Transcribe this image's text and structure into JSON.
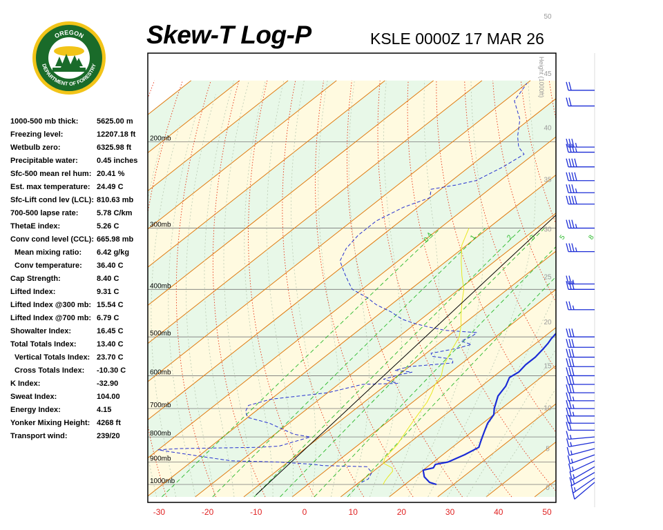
{
  "header": {
    "title": "Skew-T Log-P",
    "station": "KSLE 0000Z 17 MAR 26",
    "logo_text": [
      "OREGON",
      "DEPARTMENT OF FORESTRY"
    ]
  },
  "indices": [
    {
      "label": "1000-500 mb thick:",
      "value": "5625.00 m"
    },
    {
      "label": "Freezing level:",
      "value": "12207.18 ft"
    },
    {
      "label": "Wetbulb zero:",
      "value": "6325.98 ft"
    },
    {
      "label": "Precipitable water:",
      "value": "0.45 inches"
    },
    {
      "label": "Sfc-500 mean rel hum:",
      "value": "20.41 %"
    },
    {
      "label": "Est. max temperature:",
      "value": "24.49 C"
    },
    {
      "label": "Sfc-Lift cond lev (LCL):",
      "value": "810.63 mb"
    },
    {
      "label": "700-500 lapse rate:",
      "value": "5.78 C/km"
    },
    {
      "label": "ThetaE index:",
      "value": "5.26 C"
    },
    {
      "label": "Conv cond level (CCL):",
      "value": "665.98 mb"
    },
    {
      "label": "Mean mixing ratio:",
      "value": "6.42 g/kg",
      "indent": true
    },
    {
      "label": "Conv temperature:",
      "value": "36.40 C",
      "indent": true
    },
    {
      "label": "Cap Strength:",
      "value": "8.40 C"
    },
    {
      "label": "Lifted Index:",
      "value": "9.31 C"
    },
    {
      "label": "Lifted Index @300 mb:",
      "value": "15.54 C"
    },
    {
      "label": "Lifted Index @700 mb:",
      "value": "6.79 C"
    },
    {
      "label": "Showalter Index:",
      "value": "16.45 C"
    },
    {
      "label": "Total Totals Index:",
      "value": "13.40 C"
    },
    {
      "label": "Vertical Totals Index:",
      "value": "23.70 C",
      "indent": true
    },
    {
      "label": "Cross Totals Index:",
      "value": "-10.30 C",
      "indent": true
    },
    {
      "label": "K Index:",
      "value": "-32.90"
    },
    {
      "label": "Sweat Index:",
      "value": "104.00"
    },
    {
      "label": "Energy Index:",
      "value": "4.15"
    },
    {
      "label": "Yonker Mixing Height:",
      "value": "4268 ft"
    },
    {
      "label": "Transport wind:",
      "value": "239/20"
    }
  ],
  "chart_data": {
    "type": "line",
    "x_axis": {
      "label": "",
      "unit": "C",
      "ticks": [
        -30,
        -20,
        -10,
        0,
        10,
        20,
        30,
        40,
        50
      ],
      "range": [
        -33,
        51
      ]
    },
    "y_axis": {
      "scale": "log",
      "unit": "mb",
      "range": [
        1050,
        150
      ],
      "labels": [
        "200mb",
        "300mb",
        "400mb",
        "500mb",
        "600mb",
        "700mb",
        "800mb",
        "900mb",
        "1000mb"
      ],
      "levels": [
        200,
        300,
        400,
        500,
        600,
        700,
        800,
        900,
        1000
      ]
    },
    "height_axis": {
      "label": "Height (1000ft)",
      "ticks": [
        0,
        5,
        10,
        15,
        20,
        25,
        30,
        35,
        40,
        45,
        50
      ]
    },
    "mixing_ratio_labels": [
      "0.4",
      "1",
      "2",
      "3",
      "5",
      "8"
    ],
    "mixing_ratios": [
      0.4,
      1,
      2,
      3,
      5,
      8
    ],
    "series": [
      {
        "type": "temperature",
        "color": "#1a2bd6",
        "points": [
          [
            26.5,
            1000
          ],
          [
            24.5,
            990
          ],
          [
            22,
            965
          ],
          [
            20,
            935
          ],
          [
            21.5,
            925
          ],
          [
            21,
            910
          ],
          [
            23,
            900
          ],
          [
            24.5,
            870
          ],
          [
            25.5,
            840
          ],
          [
            24.5,
            820
          ],
          [
            23.5,
            800
          ],
          [
            22.5,
            780
          ],
          [
            21,
            750
          ],
          [
            20,
            720
          ],
          [
            18.5,
            700
          ],
          [
            16,
            660
          ],
          [
            15,
            630
          ],
          [
            13.5,
            605
          ],
          [
            14,
            590
          ],
          [
            13.5,
            570
          ],
          [
            13.5,
            550
          ],
          [
            13,
            530
          ],
          [
            12.5,
            515
          ],
          [
            12,
            505
          ],
          [
            11.5,
            490
          ],
          [
            10.5,
            465
          ],
          [
            9,
            440
          ],
          [
            7,
            415
          ],
          [
            5,
            395
          ],
          [
            3,
            375
          ],
          [
            0,
            350
          ],
          [
            -3,
            325
          ],
          [
            -6,
            305
          ],
          [
            -10,
            285
          ],
          [
            -14,
            265
          ],
          [
            -18,
            240
          ],
          [
            -22,
            222
          ],
          [
            -26,
            210
          ],
          [
            -30,
            200
          ],
          [
            -33,
            192
          ],
          [
            -37,
            178
          ],
          [
            -40,
            163
          ],
          [
            -41,
            150
          ]
        ]
      },
      {
        "type": "dewpoint",
        "color": "#2530d0",
        "points": [
          [
            10.5,
            990
          ],
          [
            11,
            975
          ],
          [
            10.5,
            960
          ],
          [
            10,
            945
          ],
          [
            9,
            935
          ],
          [
            7.5,
            920
          ],
          [
            -2,
            915
          ],
          [
            -4,
            910
          ],
          [
            -8,
            905
          ],
          [
            -12,
            900
          ],
          [
            -22,
            895
          ],
          [
            -28,
            880
          ],
          [
            -32,
            870
          ],
          [
            -36,
            860
          ],
          [
            -40,
            850
          ],
          [
            -36,
            845
          ],
          [
            -20,
            840
          ],
          [
            -16,
            835
          ],
          [
            -12,
            800
          ],
          [
            -16,
            790
          ],
          [
            -20,
            770
          ],
          [
            -24,
            750
          ],
          [
            -30,
            730
          ],
          [
            -32,
            710
          ],
          [
            -33,
            690
          ],
          [
            -30,
            670
          ],
          [
            -20,
            650
          ],
          [
            -18,
            640
          ],
          [
            -15,
            625
          ],
          [
            -8,
            622
          ],
          [
            -12,
            610
          ],
          [
            -10,
            598
          ],
          [
            -8,
            590
          ],
          [
            -12,
            585
          ],
          [
            -10,
            575
          ],
          [
            -2,
            565
          ],
          [
            -3,
            555
          ],
          [
            -8,
            548
          ],
          [
            -9,
            540
          ],
          [
            -5,
            528
          ],
          [
            -3,
            518
          ],
          [
            -6,
            510
          ],
          [
            -5,
            498
          ],
          [
            -5,
            490
          ],
          [
            -12,
            485
          ],
          [
            -16,
            478
          ],
          [
            -20,
            470
          ],
          [
            -24,
            460
          ],
          [
            -28,
            445
          ],
          [
            -33,
            430
          ],
          [
            -37,
            415
          ],
          [
            -42,
            400
          ],
          [
            -45,
            385
          ],
          [
            -48,
            370
          ],
          [
            -52,
            350
          ],
          [
            -54,
            330
          ],
          [
            -55,
            310
          ],
          [
            -55,
            290
          ],
          [
            -53,
            272
          ],
          [
            -50,
            260
          ],
          [
            -52,
            250
          ],
          [
            -48,
            245
          ],
          [
            -45,
            240
          ],
          [
            -43,
            225
          ],
          [
            -42,
            212
          ],
          [
            -45,
            205
          ],
          [
            -48,
            195
          ],
          [
            -52,
            180
          ],
          [
            -58,
            165
          ],
          [
            -60,
            152
          ]
        ]
      },
      {
        "type": "wetbulb",
        "color": "#e8e820",
        "points": [
          [
            15.5,
            1000
          ],
          [
            15,
            985
          ],
          [
            14.5,
            965
          ],
          [
            14,
            940
          ],
          [
            13,
            925
          ],
          [
            11.5,
            915
          ],
          [
            10,
            905
          ],
          [
            9,
            885
          ],
          [
            8.5,
            860
          ],
          [
            8,
            830
          ],
          [
            7,
            800
          ],
          [
            6,
            770
          ],
          [
            5,
            740
          ],
          [
            4,
            710
          ],
          [
            3,
            680
          ],
          [
            1.5,
            650
          ],
          [
            0,
            625
          ],
          [
            -1,
            600
          ],
          [
            -3,
            575
          ],
          [
            -4.5,
            550
          ],
          [
            -6,
            525
          ],
          [
            -7.5,
            500
          ],
          [
            -10,
            475
          ],
          [
            -13,
            450
          ],
          [
            -16,
            425
          ],
          [
            -19,
            400
          ],
          [
            -23,
            375
          ],
          [
            -27,
            350
          ],
          [
            -31,
            325
          ],
          [
            -34,
            300
          ]
        ]
      },
      {
        "type": "parcel",
        "color": "#000000",
        "points": [
          [
            -8,
            1050
          ],
          [
            -25,
            150
          ]
        ]
      }
    ],
    "wind_barbs": {
      "color": "#1a2bd6",
      "levels": [
        {
          "p": 990,
          "dir": 230,
          "spd": 10
        },
        {
          "p": 970,
          "dir": 235,
          "spd": 15
        },
        {
          "p": 945,
          "dir": 240,
          "spd": 15
        },
        {
          "p": 920,
          "dir": 240,
          "spd": 15
        },
        {
          "p": 895,
          "dir": 245,
          "spd": 15
        },
        {
          "p": 870,
          "dir": 250,
          "spd": 15
        },
        {
          "p": 845,
          "dir": 255,
          "spd": 15
        },
        {
          "p": 820,
          "dir": 260,
          "spd": 15
        },
        {
          "p": 800,
          "dir": 265,
          "spd": 15
        },
        {
          "p": 775,
          "dir": 270,
          "spd": 20
        },
        {
          "p": 750,
          "dir": 270,
          "spd": 20
        },
        {
          "p": 725,
          "dir": 270,
          "spd": 25
        },
        {
          "p": 700,
          "dir": 270,
          "spd": 25
        },
        {
          "p": 675,
          "dir": 270,
          "spd": 25
        },
        {
          "p": 650,
          "dir": 270,
          "spd": 30
        },
        {
          "p": 625,
          "dir": 270,
          "spd": 30
        },
        {
          "p": 600,
          "dir": 270,
          "spd": 30
        },
        {
          "p": 575,
          "dir": 270,
          "spd": 30
        },
        {
          "p": 550,
          "dir": 270,
          "spd": 30
        },
        {
          "p": 525,
          "dir": 270,
          "spd": 30
        },
        {
          "p": 500,
          "dir": 270,
          "spd": 30
        },
        {
          "p": 440,
          "dir": 270,
          "spd": 25
        },
        {
          "p": 400,
          "dir": 270,
          "spd": 30
        },
        {
          "p": 390,
          "dir": 270,
          "spd": 25
        },
        {
          "p": 335,
          "dir": 270,
          "spd": 35
        },
        {
          "p": 300,
          "dir": 270,
          "spd": 35
        },
        {
          "p": 268,
          "dir": 270,
          "spd": 40
        },
        {
          "p": 254,
          "dir": 270,
          "spd": 35
        },
        {
          "p": 240,
          "dir": 270,
          "spd": 40
        },
        {
          "p": 225,
          "dir": 270,
          "spd": 40
        },
        {
          "p": 210,
          "dir": 270,
          "spd": 35
        },
        {
          "p": 205,
          "dir": 270,
          "spd": 35
        },
        {
          "p": 169,
          "dir": 270,
          "spd": 20
        },
        {
          "p": 157,
          "dir": 270,
          "spd": 20
        }
      ]
    },
    "colors": {
      "isotherm": "#e07a10",
      "dry_adiabat": "#e83010",
      "moist_adiabat": "#b8c8b0",
      "mixing_ratio": "#28b828",
      "isobar": "#777777",
      "band_green": "#e8f8e8",
      "band_yellow": "#fffae0",
      "x_tick_label": "#e02020"
    }
  }
}
